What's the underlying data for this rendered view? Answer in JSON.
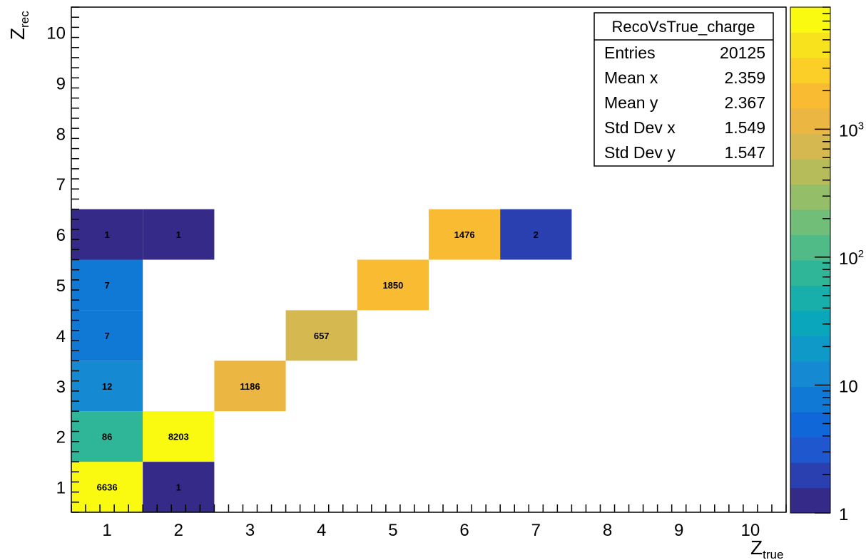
{
  "chart_data": {
    "type": "heatmap",
    "title": "",
    "xlabel": {
      "main": "Z",
      "sub": "true"
    },
    "ylabel": {
      "main": "Z",
      "sub": "rec"
    },
    "xlim": [
      0.5,
      10.5
    ],
    "ylim": [
      0.5,
      10.5
    ],
    "x_ticks": [
      "1",
      "2",
      "3",
      "4",
      "5",
      "6",
      "7",
      "8",
      "9",
      "10"
    ],
    "y_ticks": [
      "1",
      "2",
      "3",
      "4",
      "5",
      "6",
      "7",
      "8",
      "9",
      "10"
    ],
    "z_scale": "log",
    "zlim": [
      1,
      9000
    ],
    "colorbar_labels": [
      {
        "value": 1,
        "base": "1",
        "exp": ""
      },
      {
        "value": 10,
        "base": "10",
        "exp": ""
      },
      {
        "value": 100,
        "base": "10",
        "exp": "2"
      },
      {
        "value": 1000,
        "base": "10",
        "exp": "3"
      }
    ],
    "cells": [
      {
        "x": 1,
        "y": 1,
        "value": 6636,
        "label": "6636"
      },
      {
        "x": 2,
        "y": 1,
        "value": 1,
        "label": "1"
      },
      {
        "x": 1,
        "y": 2,
        "value": 86,
        "label": "86"
      },
      {
        "x": 2,
        "y": 2,
        "value": 8203,
        "label": "8203"
      },
      {
        "x": 1,
        "y": 3,
        "value": 12,
        "label": "12"
      },
      {
        "x": 3,
        "y": 3,
        "value": 1186,
        "label": "1186"
      },
      {
        "x": 1,
        "y": 4,
        "value": 7,
        "label": "7"
      },
      {
        "x": 4,
        "y": 4,
        "value": 657,
        "label": "657"
      },
      {
        "x": 1,
        "y": 5,
        "value": 7,
        "label": "7"
      },
      {
        "x": 5,
        "y": 5,
        "value": 1850,
        "label": "1850"
      },
      {
        "x": 1,
        "y": 6,
        "value": 1,
        "label": "1"
      },
      {
        "x": 2,
        "y": 6,
        "value": 1,
        "label": "1"
      },
      {
        "x": 6,
        "y": 6,
        "value": 1476,
        "label": "1476"
      },
      {
        "x": 7,
        "y": 6,
        "value": 2,
        "label": "2"
      }
    ],
    "stats_box": {
      "title": "RecoVsTrue_charge",
      "rows": [
        {
          "label": "Entries",
          "value": "20125"
        },
        {
          "label": "Mean x",
          "value": "2.359"
        },
        {
          "label": "Mean y",
          "value": "2.367"
        },
        {
          "label": "Std Dev x",
          "value": "1.549"
        },
        {
          "label": "Std Dev y",
          "value": "1.547"
        }
      ]
    },
    "palette": [
      "#352a87",
      "#2a3fb0",
      "#1f57cf",
      "#1068d8",
      "#1079d5",
      "#1589d2",
      "#0f99c9",
      "#0aa6bc",
      "#18afaa",
      "#2fb699",
      "#50bb86",
      "#71be78",
      "#95be68",
      "#b7bc5b",
      "#d5b84f",
      "#ebb641",
      "#f8bb32",
      "#fbcf28",
      "#f7e21d",
      "#f9fa0f"
    ]
  }
}
